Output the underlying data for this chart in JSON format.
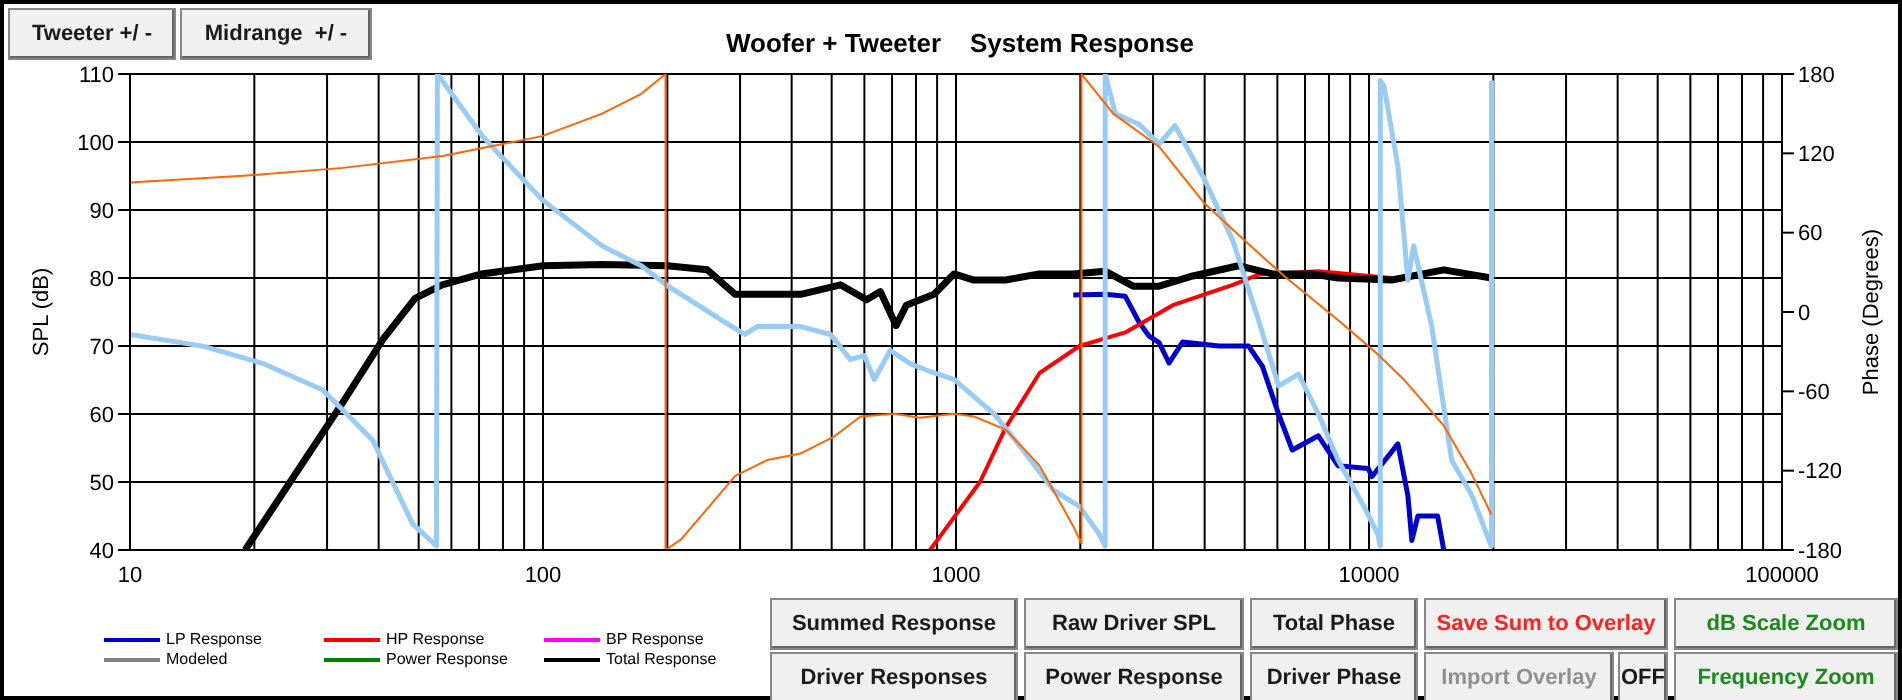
{
  "chart_data": {
    "type": "line",
    "title": "Woofer + Tweeter    System Response",
    "ylabel": "SPL (dB)",
    "y2label": "Phase (Degrees)",
    "log": "x",
    "grid": true,
    "legend": "bottom left",
    "marker": "none",
    "line_style": "solid",
    "xlim": [
      10,
      100000
    ],
    "xticks": [
      10,
      {
        "value": 20,
        "label": null
      },
      {
        "value": 30,
        "label": null
      },
      {
        "value": 40,
        "label": null
      },
      {
        "value": 50,
        "label": null
      },
      {
        "value": 60,
        "label": null
      },
      {
        "value": 70,
        "label": null
      },
      {
        "value": 80,
        "label": null
      },
      {
        "value": 90,
        "label": null
      },
      100,
      {
        "value": 200,
        "label": null
      },
      {
        "value": 300,
        "label": null
      },
      {
        "value": 400,
        "label": null
      },
      {
        "value": 500,
        "label": null
      },
      {
        "value": 600,
        "label": null
      },
      {
        "value": 700,
        "label": null
      },
      {
        "value": 800,
        "label": null
      },
      {
        "value": 900,
        "label": null
      },
      1000,
      {
        "value": 2000,
        "label": null
      },
      {
        "value": 3000,
        "label": null
      },
      {
        "value": 4000,
        "label": null
      },
      {
        "value": 5000,
        "label": null
      },
      {
        "value": 6000,
        "label": null
      },
      {
        "value": 7000,
        "label": null
      },
      {
        "value": 8000,
        "label": null
      },
      {
        "value": 9000,
        "label": null
      },
      10000,
      {
        "value": 20000,
        "label": null
      },
      {
        "value": 30000,
        "label": null
      },
      {
        "value": 40000,
        "label": null
      },
      {
        "value": 50000,
        "label": null
      },
      {
        "value": 60000,
        "label": null
      },
      {
        "value": 70000,
        "label": null
      },
      {
        "value": 80000,
        "label": null
      },
      {
        "value": 90000,
        "label": null
      },
      100000
    ],
    "ylim": [
      40,
      110
    ],
    "yticks": [
      40,
      50,
      60,
      70,
      80,
      90,
      100,
      110
    ],
    "y2lim": [
      -180,
      180
    ],
    "y2ticks": [
      -180,
      -120,
      -60,
      0,
      60,
      120,
      180
    ],
    "series": [
      {
        "name": "LP Response",
        "color": "#0000cc",
        "x": [
          1923,
          2297,
          2570,
          2775,
          2930,
          3103,
          3280,
          3540,
          4330,
          5110,
          5520,
          6040,
          6520,
          7540,
          8414,
          9950,
          10170,
          11750,
          12420,
          12700,
          13130,
          14660,
          15170
        ],
        "values": [
          77.5,
          77.6,
          77.3,
          73.5,
          71.5,
          70.5,
          67.5,
          70.6,
          70,
          70,
          67,
          60,
          54.7,
          56.8,
          52.4,
          52,
          50.8,
          55.6,
          48,
          41.4,
          45,
          45,
          40
        ]
      },
      {
        "name": "HP Response",
        "color": "#ff0000",
        "x": [
          865,
          915,
          1143,
          1319,
          1592,
          1990,
          2570,
          3350,
          4680,
          5400,
          7540,
          11350
        ],
        "values": [
          40,
          42,
          50,
          58,
          66,
          70,
          72,
          76,
          79,
          80.5,
          81,
          80
        ]
      },
      {
        "name": "BP Response",
        "color": "#ff00ff"
      },
      {
        "name": "Modeled",
        "color": "#808080"
      },
      {
        "name": "Power Response",
        "color": "#008000"
      },
      {
        "name": "Total Response",
        "color": "#000000",
        "x": [
          19,
          33,
          41,
          49,
          57,
          71,
          100,
          139,
          200,
          250,
          292,
          349,
          421,
          525,
          607,
          656,
          716,
          758,
          885,
          989,
          1105,
          1319,
          1592,
          1923,
          2297,
          2684,
          3103,
          3744,
          4830,
          5835,
          7290,
          8414,
          11350,
          15170,
          19770
        ],
        "values": [
          40,
          62,
          71,
          77,
          79,
          80.6,
          81.8,
          82,
          81.8,
          81.2,
          77.6,
          77.6,
          77.6,
          79,
          76.8,
          78,
          73,
          76,
          77.6,
          80.6,
          79.7,
          79.7,
          80.6,
          80.6,
          81,
          78.8,
          78.8,
          80.3,
          81.8,
          80.6,
          80.6,
          80,
          79.7,
          81.2,
          80
        ]
      },
      {
        "color": "#99ccf5",
        "axis": "y2",
        "x": [
          10,
          15.1,
          21,
          29.3,
          38.7,
          48.3,
          55.2,
          55.5,
          71.3,
          99.5,
          139,
          173,
          200,
          270,
          308,
          330,
          421,
          497,
          555,
          600,
          634,
          693,
          774,
          865,
          989,
          1236,
          1475,
          1723,
          1990,
          2222,
          2297,
          2297,
          2430,
          2775,
          3103,
          3390,
          4000,
          4680,
          5400,
          6040,
          6750,
          7540,
          8414,
          9720,
          10500,
          10650,
          10650,
          10870,
          11750,
          12420,
          12830,
          14190,
          15850,
          17700,
          19770,
          19800,
          19800
        ],
        "values": [
          -17,
          -26,
          -39,
          -59,
          -97,
          -160,
          -177,
          180,
          133,
          85,
          50,
          35,
          20,
          -6,
          -17,
          -11,
          -11,
          -17,
          -36,
          -33,
          -51,
          -29,
          -39,
          -45,
          -51,
          -77,
          -107,
          -135,
          -147,
          -168,
          -177,
          180,
          150,
          142,
          127,
          141,
          100,
          54,
          -6,
          -56,
          -47,
          -77,
          -112,
          -147,
          -168,
          -177,
          175,
          171,
          110,
          24,
          50,
          -11,
          -112,
          -138,
          -177,
          -177,
          175
        ]
      },
      {
        "color": "#ff6600",
        "axis": "y2",
        "x": [
          10,
          18.8,
          32.8,
          57.1,
          99.5,
          139,
          173,
          198,
          198,
          216,
          292,
          349,
          421,
          508,
          587,
          710,
          819,
          989,
          1105,
          1319,
          1592,
          1923,
          2013,
          2013,
          2404,
          3103,
          4000,
          5000,
          6240,
          8414,
          10500,
          12140,
          15170,
          17700,
          19770
        ],
        "values": [
          98,
          103,
          109,
          118,
          133,
          150,
          165,
          180,
          -180,
          -172,
          -124,
          -112,
          -107,
          -94,
          -79,
          -77,
          -80,
          -77,
          -79,
          -89,
          -116,
          -162,
          -175,
          180,
          150,
          125,
          82,
          54,
          27,
          -6,
          -32,
          -51,
          -86,
          -122,
          -153
        ]
      }
    ],
    "annotations": [
      "Tweeter +/ -",
      "Midrange  +/ -",
      "Summed Response",
      "Raw Driver SPL",
      "Total Phase",
      "Save Sum to Overlay",
      "dB Scale Zoom",
      "Driver Responses",
      "Power Response",
      "Driver Phase",
      "Import Overlay",
      "OFF",
      "Frequency Zoom"
    ]
  }
}
